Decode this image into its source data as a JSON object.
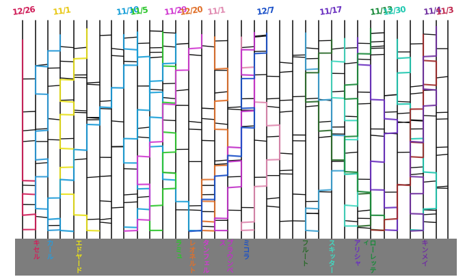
{
  "colors": {
    "background": "#ffffff",
    "ground": "#7d7d7d",
    "line": "#111111"
  },
  "columns": [
    {
      "date": "12/26",
      "name": "キセル",
      "color": "#d0205a"
    },
    {
      "date": "",
      "name": "カール",
      "color": "#2a9ad8"
    },
    {
      "date": "11/1",
      "name": "エドヤード",
      "color": "#e8e018"
    },
    {
      "date": "",
      "name": "",
      "color": "#1a9ad8"
    },
    {
      "date": "11/10",
      "name": "",
      "color": "#1aa0d8"
    },
    {
      "date": "11/5",
      "name": "",
      "color": "#2cc52c"
    },
    {
      "date": "",
      "name": "",
      "color": "#1aa0d8"
    },
    {
      "date": "11/29",
      "name": "ラミュ",
      "color": "#d03ad0"
    },
    {
      "date": "12/20",
      "name": "レオネルト",
      "color": "#e0702a"
    },
    {
      "date": "11/1",
      "name": "タンフェル",
      "color": "#e08ab0"
    },
    {
      "date": "",
      "name": "ブラウンベス",
      "color": "#c030c8"
    },
    {
      "date": "12/7",
      "name": "ミコラ",
      "color": "#1a50c8"
    },
    {
      "date": "",
      "name": "",
      "color": "#3aa0d0"
    },
    {
      "date": "11/17",
      "name": "フルート",
      "color": "#2a6a2a"
    },
    {
      "date": "",
      "name": "スキッター",
      "color": "#40d8c0"
    },
    {
      "date": "",
      "name": "アリシャ",
      "color": "#6a30c0"
    },
    {
      "date": "11/13",
      "name": "ローレッティ",
      "color": "#1a8a3a"
    },
    {
      "date": "12/30",
      "name": "",
      "color": "#20c8b0"
    },
    {
      "date": "",
      "name": "",
      "color": "#a02a2a"
    },
    {
      "date": "11/4",
      "name": "キンメイ",
      "color": "#7030a0"
    },
    {
      "date": "11/3",
      "name": "",
      "color": "#c02a50"
    }
  ],
  "header_dates": [
    {
      "text": "12/26",
      "color": "#d0205a"
    },
    {
      "text": "11/1",
      "color": "#e8c818"
    },
    {
      "text": "11/10",
      "color": "#1aa0d8"
    },
    {
      "text": "11/5",
      "color": "#2cc52c"
    },
    {
      "text": "11/29",
      "color": "#d03ad0"
    },
    {
      "text": "12/20",
      "color": "#e0702a"
    },
    {
      "text": "11/1",
      "color": "#e08ab0"
    },
    {
      "text": "12/7",
      "color": "#1a50c8"
    },
    {
      "text": "11/17",
      "color": "#6a30c0"
    },
    {
      "text": "11/13",
      "color": "#1a8a3a"
    },
    {
      "text": "12/30",
      "color": "#20c8b0"
    },
    {
      "text": "11/4",
      "color": "#7030a0"
    },
    {
      "text": "11/3",
      "color": "#c02a50"
    }
  ],
  "bottom_names": [
    {
      "text": "キセル",
      "color": "#d0205a"
    },
    {
      "text": "カール",
      "color": "#2a9ad8"
    },
    {
      "text": "エドヤード",
      "color": "#e8e018"
    },
    {
      "text": "ラミュ",
      "color": "#2cc52c"
    },
    {
      "text": "レオネルト",
      "color": "#e0702a"
    },
    {
      "text": "タンフェル",
      "color": "#d03ad0"
    },
    {
      "text": "ブラウンベス",
      "color": "#c030c8"
    },
    {
      "text": "ミコラ",
      "color": "#1a50c8"
    },
    {
      "text": "フルート",
      "color": "#2a6a2a"
    },
    {
      "text": "スキッター",
      "color": "#40d8c0"
    },
    {
      "text": "アリシャ",
      "color": "#6a30c0"
    },
    {
      "text": "ローレッティ",
      "color": "#1a8a3a"
    },
    {
      "text": "キンメイ",
      "color": "#7030a0"
    }
  ]
}
